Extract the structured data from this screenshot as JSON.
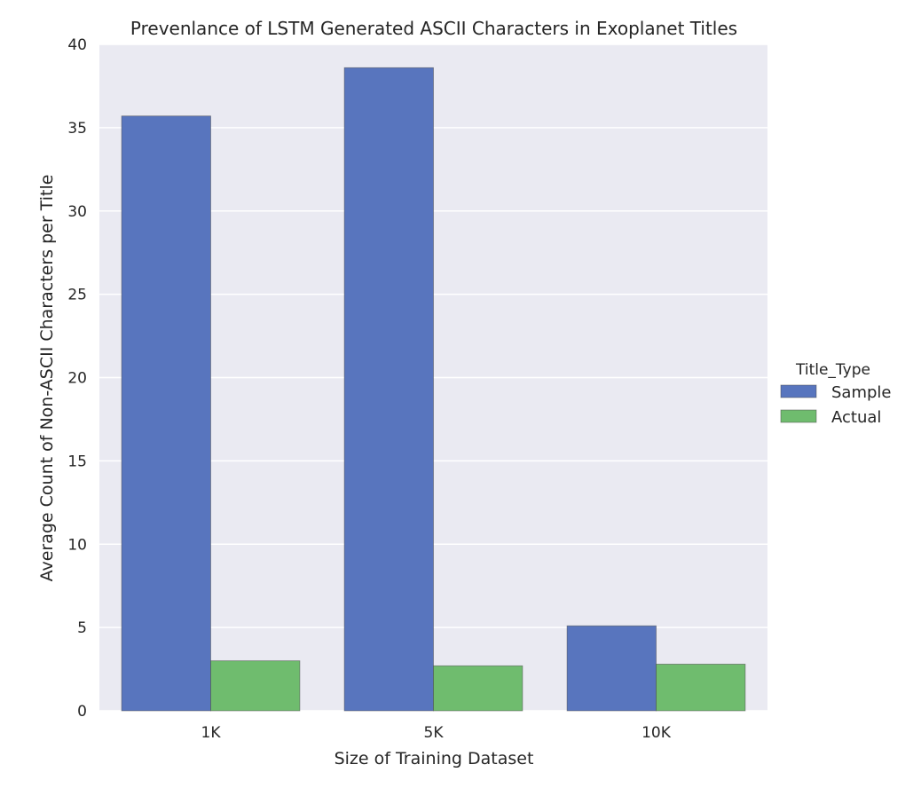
{
  "chart_data": {
    "type": "bar",
    "title": "Prevenlance of LSTM Generated ASCII Characters in Exoplanet Titles",
    "xlabel": "Size of Training Dataset",
    "ylabel": "Average Count of Non-ASCII Characters per Title",
    "categories": [
      "1K",
      "5K",
      "10K"
    ],
    "series": [
      {
        "name": "Sample",
        "values": [
          35.7,
          38.6,
          5.1
        ],
        "color": "#5875BE"
      },
      {
        "name": "Actual",
        "values": [
          3.0,
          2.7,
          2.8
        ],
        "color": "#6FBC6E"
      }
    ],
    "ylim": [
      0,
      40
    ],
    "yticks": [
      "0",
      "5",
      "10",
      "15",
      "20",
      "25",
      "30",
      "35",
      "40"
    ],
    "legend": {
      "title": "Title_Type",
      "position": "right"
    },
    "grid": true,
    "plot_background": "#EAEAF2"
  }
}
